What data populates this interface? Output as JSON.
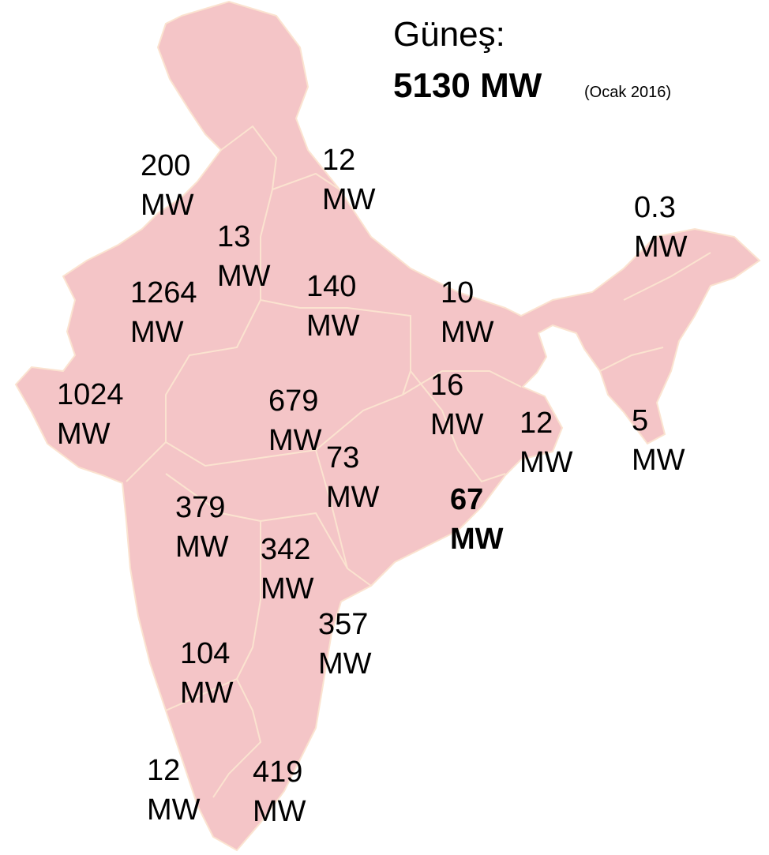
{
  "title": "Güneş:",
  "total": {
    "value": 5130,
    "unit": "MW"
  },
  "date": "(Ocak 2016)",
  "labels": [
    {
      "value": 200,
      "unit": "MW"
    },
    {
      "value": 12,
      "unit": "MW"
    },
    {
      "value": 0.3,
      "unit": "MW"
    },
    {
      "value": 13,
      "unit": "MW"
    },
    {
      "value": 1264,
      "unit": "MW"
    },
    {
      "value": 140,
      "unit": "MW"
    },
    {
      "value": 10,
      "unit": "MW"
    },
    {
      "value": 1024,
      "unit": "MW"
    },
    {
      "value": 679,
      "unit": "MW"
    },
    {
      "value": 16,
      "unit": "MW"
    },
    {
      "value": 12,
      "unit": "MW"
    },
    {
      "value": 5,
      "unit": "MW"
    },
    {
      "value": 73,
      "unit": "MW"
    },
    {
      "value": 67,
      "unit": "MW",
      "bold": true
    },
    {
      "value": 379,
      "unit": "MW"
    },
    {
      "value": 342,
      "unit": "MW"
    },
    {
      "value": 357,
      "unit": "MW"
    },
    {
      "value": 104,
      "unit": "MW"
    },
    {
      "value": 12,
      "unit": "MW"
    },
    {
      "value": 419,
      "unit": "MW"
    }
  ]
}
